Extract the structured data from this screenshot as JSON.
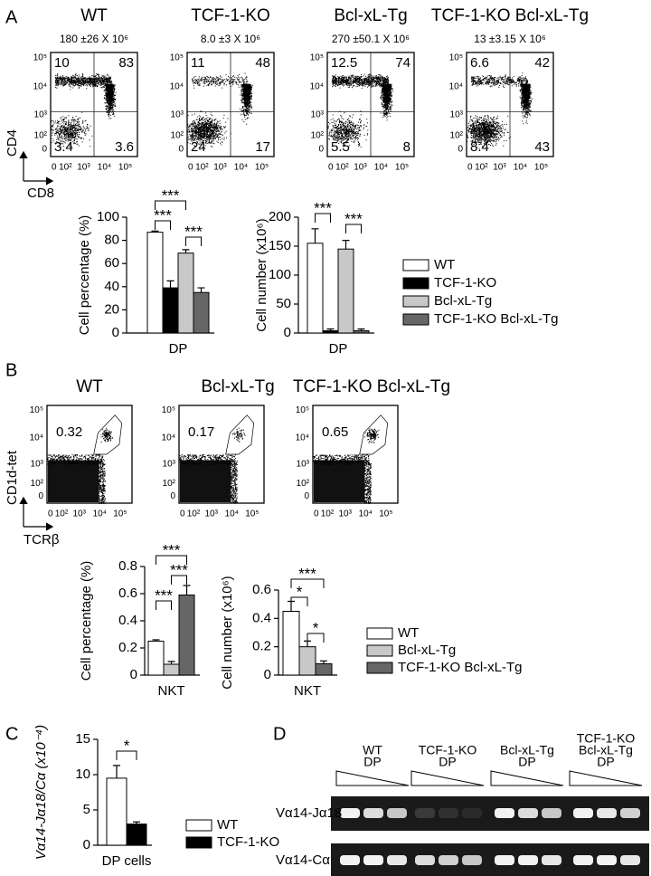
{
  "panel_labels": [
    "A",
    "B",
    "C",
    "D"
  ],
  "panel_a": {
    "plots": [
      {
        "title": "WT",
        "subtitle": "180 ±26 X 10⁶",
        "quadrants": [
          10,
          83,
          3.4,
          3.6
        ]
      },
      {
        "title": "TCF-1-KO",
        "subtitle": "8.0 ±3 X 10⁶",
        "quadrants": [
          11,
          48,
          24,
          17
        ]
      },
      {
        "title": "Bcl-xL-Tg",
        "subtitle": "270 ±50.1 X 10⁶",
        "quadrants": [
          12.5,
          74,
          5.5,
          8
        ]
      },
      {
        "title": "TCF-1-KO Bcl-xL-Tg",
        "subtitle": "13 ±3.15 X 10⁶",
        "quadrants": [
          6.6,
          42,
          8.4,
          43
        ]
      }
    ],
    "x_axis_label": "CD8",
    "y_axis_label": "CD4",
    "xticks": [
      "0",
      "10²",
      "10³",
      "10⁴",
      "10⁵"
    ],
    "yticks": [
      "10⁵",
      "10⁴",
      "10³",
      "10²",
      "0"
    ]
  },
  "panel_b": {
    "plots": [
      {
        "title": "WT",
        "gate": 0.32
      },
      {
        "title": "Bcl-xL-Tg",
        "gate": 0.17
      },
      {
        "title": "TCF-1-KO Bcl-xL-Tg",
        "gate": 0.65
      }
    ],
    "x_axis_label": "TCRβ",
    "y_axis_label": "CD1d-tet",
    "xticks": [
      "0",
      "10²",
      "10³",
      "10⁴",
      "10⁵"
    ],
    "yticks": [
      "10⁵",
      "10⁴",
      "10³",
      "10²",
      "0"
    ]
  },
  "chart_data": [
    {
      "type": "bar",
      "categories": [
        "DP"
      ],
      "y_label": "Cell percentage (%)",
      "ylim": [
        0,
        100
      ],
      "yticks": [
        0,
        20,
        40,
        60,
        80,
        100
      ],
      "annotations": [
        "***",
        "***",
        "***"
      ],
      "series": [
        {
          "name": "WT",
          "color": "#ffffff",
          "values": [
            87
          ],
          "errors": [
            1
          ]
        },
        {
          "name": "TCF-1-KO",
          "color": "#000000",
          "values": [
            39
          ],
          "errors": [
            6
          ]
        },
        {
          "name": "Bcl-xL-Tg",
          "color": "#c8c8c8",
          "values": [
            69
          ],
          "errors": [
            3
          ]
        },
        {
          "name": "TCF-1-KO Bcl-xL-Tg",
          "color": "#666666",
          "values": [
            35
          ],
          "errors": [
            4
          ]
        }
      ]
    },
    {
      "type": "bar",
      "categories": [
        "DP"
      ],
      "y_label": "Cell number (x10⁶)",
      "ylim": [
        0,
        200
      ],
      "yticks": [
        0,
        50,
        100,
        150,
        200
      ],
      "annotations": [
        "***",
        "***"
      ],
      "series": [
        {
          "color": "#ffffff",
          "values": [
            155
          ],
          "errors": [
            25
          ]
        },
        {
          "color": "#000000",
          "values": [
            4
          ],
          "errors": [
            3
          ]
        },
        {
          "color": "#c8c8c8",
          "values": [
            145
          ],
          "errors": [
            15
          ]
        },
        {
          "color": "#666666",
          "values": [
            4
          ],
          "errors": [
            3
          ]
        }
      ]
    },
    {
      "type": "bar",
      "categories": [
        "NKT"
      ],
      "y_label": "Cell percentage (%)",
      "ylim": [
        0,
        0.8
      ],
      "yticks": [
        0,
        0.2,
        0.4,
        0.6,
        0.8
      ],
      "annotations": [
        "***",
        "***",
        "***"
      ],
      "series": [
        {
          "name": "WT",
          "color": "#ffffff",
          "values": [
            0.25
          ],
          "errors": [
            0.01
          ]
        },
        {
          "name": "Bcl-xL-Tg",
          "color": "#c8c8c8",
          "values": [
            0.08
          ],
          "errors": [
            0.02
          ]
        },
        {
          "name": "TCF-1-KO Bcl-xL-Tg",
          "color": "#666666",
          "values": [
            0.59
          ],
          "errors": [
            0.07
          ]
        }
      ]
    },
    {
      "type": "bar",
      "categories": [
        "NKT"
      ],
      "y_label": "Cell number (x10⁶)",
      "ylim": [
        0,
        0.6
      ],
      "yticks": [
        0,
        0.2,
        0.4,
        0.6
      ],
      "annotations": [
        "***",
        "*",
        "*"
      ],
      "series": [
        {
          "color": "#ffffff",
          "values": [
            0.45
          ],
          "errors": [
            0.07
          ]
        },
        {
          "color": "#c8c8c8",
          "values": [
            0.2
          ],
          "errors": [
            0.04
          ]
        },
        {
          "color": "#666666",
          "values": [
            0.08
          ],
          "errors": [
            0.02
          ]
        }
      ]
    },
    {
      "type": "bar",
      "categories": [
        "DP cells"
      ],
      "y_label": "Vα14-Jα18/Cα (x10⁻⁴)",
      "ylim": [
        0,
        15
      ],
      "yticks": [
        0,
        5,
        10,
        15
      ],
      "annotations": [
        "*"
      ],
      "series": [
        {
          "name": "WT",
          "color": "#ffffff",
          "values": [
            9.5
          ],
          "errors": [
            1.8
          ]
        },
        {
          "name": "TCF-1-KO",
          "color": "#000000",
          "values": [
            3
          ],
          "errors": [
            0.3
          ]
        }
      ]
    }
  ],
  "panel_d": {
    "groups": [
      [
        "WT",
        "DP"
      ],
      [
        "TCF-1-KO",
        "DP"
      ],
      [
        "Bcl-xL-Tg",
        "DP"
      ],
      [
        "TCF-1-KO",
        "Bcl-xL-Tg",
        "DP"
      ]
    ],
    "rows": [
      "Vα14-Jα18",
      "Vα14-Cα"
    ]
  }
}
